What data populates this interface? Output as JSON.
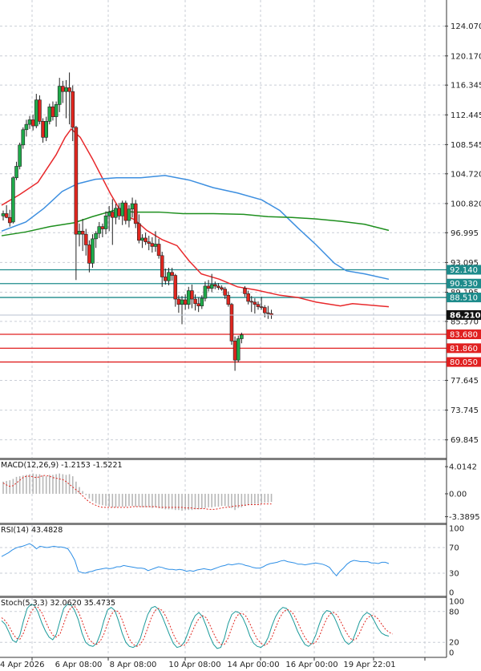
{
  "chart_data": {
    "type": "candlestick",
    "symbol_note": "",
    "price_axis": {
      "ticks": [
        "124.070",
        "120.170",
        "116.345",
        "112.445",
        "108.545",
        "104.720",
        "100.820",
        "96.995",
        "93.095",
        "89.195",
        "85.370",
        "77.645",
        "73.745",
        "69.845"
      ],
      "ylim": [
        67.5,
        127.5
      ]
    },
    "time_axis": {
      "ticks": [
        "4 Apr 2026",
        "6 Apr 08:00",
        "8 Apr 08:00",
        "10 Apr 08:00",
        "14 Apr 00:00",
        "16 Apr 00:00",
        "19 Apr 22:01"
      ]
    },
    "levels": [
      {
        "label": "92.140",
        "value": 92.14,
        "color": "#1e8b8b"
      },
      {
        "label": "90.330",
        "value": 90.33,
        "color": "#1e8b8b"
      },
      {
        "label": "88.510",
        "value": 88.51,
        "color": "#1e8b8b"
      },
      {
        "label": "83.680",
        "value": 83.68,
        "color": "#e02020"
      },
      {
        "label": "81.860",
        "value": 81.86,
        "color": "#e02020"
      },
      {
        "label": "80.050",
        "value": 80.05,
        "color": "#e02020"
      }
    ],
    "current_price": {
      "label": "86.210",
      "value": 86.21
    },
    "candles": [
      [
        99.2,
        99.9,
        98.6,
        99.5
      ],
      [
        99.5,
        100.6,
        98.9,
        99.0
      ],
      [
        99.0,
        100.0,
        97.8,
        98.3
      ],
      [
        98.4,
        104.4,
        98.2,
        104.2
      ],
      [
        104.2,
        106.3,
        103.9,
        105.7
      ],
      [
        105.7,
        108.8,
        105.3,
        108.5
      ],
      [
        108.5,
        110.8,
        108.0,
        110.5
      ],
      [
        110.5,
        111.8,
        109.6,
        111.2
      ],
      [
        111.2,
        112.3,
        110.6,
        111.8
      ],
      [
        111.8,
        112.5,
        110.4,
        111.0
      ],
      [
        111.0,
        115.2,
        110.7,
        114.4
      ],
      [
        114.4,
        115.0,
        111.2,
        111.6
      ],
      [
        111.6,
        112.0,
        108.8,
        109.5
      ],
      [
        109.5,
        112.2,
        109.0,
        111.6
      ],
      [
        111.6,
        113.9,
        111.2,
        113.5
      ],
      [
        113.5,
        114.2,
        111.7,
        112.2
      ],
      [
        112.2,
        114.2,
        110.9,
        113.8
      ],
      [
        113.8,
        117.3,
        112.8,
        116.2
      ],
      [
        116.2,
        116.9,
        114.0,
        115.5
      ],
      [
        115.5,
        117.0,
        112.0,
        116.0
      ],
      [
        116.0,
        118.0,
        111.2,
        115.5
      ],
      [
        115.5,
        116.3,
        109.0,
        110.8
      ],
      [
        110.8,
        111.0,
        90.8,
        96.8
      ],
      [
        96.8,
        98.2,
        95.2,
        97.2
      ],
      [
        97.2,
        98.8,
        94.6,
        96.8
      ],
      [
        96.8,
        97.5,
        94.0,
        95.4
      ],
      [
        95.4,
        96.0,
        91.8,
        93.0
      ],
      [
        93.0,
        96.8,
        92.4,
        96.2
      ],
      [
        96.2,
        97.2,
        95.0,
        96.9
      ],
      [
        96.9,
        98.4,
        96.3,
        97.8
      ],
      [
        97.8,
        98.2,
        96.4,
        97.5
      ],
      [
        97.5,
        99.8,
        96.8,
        99.2
      ],
      [
        99.2,
        100.5,
        97.2,
        99.7
      ],
      [
        99.7,
        101.4,
        95.4,
        99.0
      ],
      [
        99.0,
        100.8,
        98.1,
        100.2
      ],
      [
        100.2,
        100.9,
        98.7,
        99.2
      ],
      [
        99.2,
        101.2,
        98.0,
        100.9
      ],
      [
        100.9,
        101.2,
        98.1,
        98.6
      ],
      [
        98.6,
        100.6,
        97.7,
        100.1
      ],
      [
        100.1,
        101.6,
        99.0,
        100.8
      ],
      [
        100.8,
        101.3,
        97.6,
        98.2
      ],
      [
        98.2,
        99.4,
        95.6,
        96.0
      ],
      [
        96.0,
        96.8,
        95.0,
        96.3
      ],
      [
        96.3,
        97.0,
        95.4,
        95.8
      ],
      [
        95.8,
        96.6,
        94.7,
        95.6
      ],
      [
        95.6,
        96.4,
        94.4,
        95.2
      ],
      [
        95.2,
        97.2,
        94.5,
        95.5
      ],
      [
        95.5,
        96.2,
        93.6,
        94.0
      ],
      [
        94.0,
        94.5,
        89.9,
        91.2
      ],
      [
        91.2,
        92.3,
        90.2,
        90.7
      ],
      [
        90.7,
        92.4,
        90.1,
        91.8
      ],
      [
        91.8,
        92.4,
        90.7,
        91.4
      ],
      [
        91.4,
        91.6,
        87.3,
        88.3
      ],
      [
        88.3,
        88.8,
        86.5,
        87.6
      ],
      [
        87.6,
        88.7,
        85.0,
        88.2
      ],
      [
        88.2,
        88.9,
        86.9,
        87.6
      ],
      [
        87.6,
        89.9,
        87.0,
        89.4
      ],
      [
        89.4,
        90.2,
        87.1,
        88.3
      ],
      [
        88.3,
        88.9,
        86.8,
        87.7
      ],
      [
        87.7,
        88.5,
        86.6,
        87.4
      ],
      [
        87.4,
        88.8,
        87.0,
        88.4
      ],
      [
        88.4,
        90.6,
        88.0,
        90.0
      ],
      [
        90.0,
        90.8,
        89.3,
        89.7
      ],
      [
        89.7,
        91.6,
        89.2,
        90.2
      ],
      [
        90.2,
        90.6,
        89.6,
        90.0
      ],
      [
        90.0,
        90.4,
        89.5,
        89.8
      ],
      [
        89.8,
        90.1,
        89.4,
        89.6
      ],
      [
        89.6,
        89.9,
        88.3,
        88.8
      ],
      [
        88.8,
        89.3,
        87.3,
        87.6
      ],
      [
        87.6,
        87.8,
        82.3,
        82.8
      ],
      [
        82.8,
        83.4,
        78.9,
        80.3
      ],
      [
        80.3,
        83.5,
        80.0,
        83.1
      ],
      [
        83.1,
        83.9,
        82.5,
        83.6
      ],
      [
        89.7,
        90.0,
        88.6,
        89.0
      ],
      [
        89.0,
        89.4,
        87.6,
        88.0
      ],
      [
        88.0,
        88.7,
        86.6,
        87.9
      ],
      [
        87.9,
        88.4,
        86.4,
        87.6
      ],
      [
        87.6,
        88.0,
        86.9,
        87.3
      ],
      [
        87.3,
        88.6,
        86.9,
        87.2
      ],
      [
        87.2,
        87.5,
        85.9,
        86.5
      ],
      [
        86.5,
        87.4,
        85.7,
        86.4
      ],
      [
        86.4,
        86.9,
        85.7,
        86.2
      ]
    ],
    "moving_averages": [
      {
        "name": "MA fast",
        "color": "#e8282b",
        "values": [
          [
            0,
            100.6
          ],
          [
            6,
            102.0
          ],
          [
            12,
            103.6
          ],
          [
            18,
            107.2
          ],
          [
            21,
            109.5
          ],
          [
            23,
            110.6
          ],
          [
            26,
            109.5
          ],
          [
            30,
            106.7
          ],
          [
            36,
            102.1
          ],
          [
            40,
            99.4
          ],
          [
            44,
            98.7
          ],
          [
            48,
            97.3
          ],
          [
            53,
            96.1
          ],
          [
            58,
            95.3
          ],
          [
            62,
            93.3
          ],
          [
            66,
            91.6
          ],
          [
            72,
            90.9
          ],
          [
            78,
            89.9
          ],
          [
            84,
            89.5
          ],
          [
            92,
            88.8
          ],
          [
            98,
            88.5
          ],
          [
            104,
            87.9
          ],
          [
            112,
            87.4
          ],
          [
            116,
            87.7
          ],
          [
            128,
            87.3
          ]
        ]
      },
      {
        "name": "MA medium",
        "color": "#3d8fe0",
        "values": [
          [
            0,
            97.2
          ],
          [
            8,
            98.4
          ],
          [
            14,
            100.2
          ],
          [
            20,
            102.4
          ],
          [
            25,
            103.4
          ],
          [
            31,
            104.0
          ],
          [
            38,
            104.2
          ],
          [
            46,
            104.2
          ],
          [
            54,
            104.5
          ],
          [
            62,
            103.9
          ],
          [
            70,
            102.9
          ],
          [
            78,
            102.2
          ],
          [
            86,
            101.3
          ],
          [
            92,
            99.9
          ],
          [
            98,
            97.6
          ],
          [
            104,
            95.4
          ],
          [
            110,
            93.0
          ],
          [
            114,
            92.0
          ],
          [
            120,
            91.6
          ],
          [
            128,
            90.9
          ]
        ]
      },
      {
        "name": "MA slow",
        "color": "#1e8f1e",
        "values": [
          [
            0,
            96.6
          ],
          [
            8,
            97.1
          ],
          [
            16,
            97.8
          ],
          [
            24,
            98.3
          ],
          [
            30,
            99.1
          ],
          [
            37,
            99.9
          ],
          [
            44,
            99.7
          ],
          [
            52,
            99.7
          ],
          [
            60,
            99.5
          ],
          [
            70,
            99.5
          ],
          [
            80,
            99.4
          ],
          [
            88,
            99.1
          ],
          [
            96,
            99.0
          ],
          [
            104,
            98.8
          ],
          [
            112,
            98.5
          ],
          [
            120,
            98.1
          ],
          [
            128,
            97.3
          ]
        ]
      }
    ],
    "macd": {
      "label": "MACD(12,26,9) -1.2153 -1.5221",
      "ticks": [
        "4.0142",
        "0.00",
        "-3.3895"
      ],
      "ylim": [
        -3.8,
        4.5
      ],
      "histogram": [
        1.8,
        1.9,
        2.0,
        2.2,
        2.5,
        2.6,
        2.7,
        2.8,
        2.9,
        3.0,
        2.9,
        2.9,
        2.7,
        2.6,
        2.8,
        2.8,
        2.9,
        3.0,
        2.9,
        2.8,
        2.9,
        2.6,
        1.8,
        1.0,
        0.4,
        -0.2,
        -0.7,
        -1.1,
        -1.4,
        -1.6,
        -1.7,
        -1.8,
        -1.9,
        -2.0,
        -2.0,
        -1.9,
        -1.9,
        -1.9,
        -1.8,
        -1.8,
        -1.9,
        -1.9,
        -2.0,
        -2.0,
        -2.0,
        -2.1,
        -2.0,
        -2.1,
        -2.2,
        -2.3,
        -2.3,
        -2.3,
        -2.4,
        -2.4,
        -2.5,
        -2.4,
        -2.4,
        -2.4,
        -2.3,
        -2.3,
        -2.2,
        -2.1,
        -2.0,
        -2.0,
        -1.9,
        -1.9,
        -1.8,
        -1.8,
        -1.9,
        -2.1,
        -2.4,
        -2.1,
        -2.0,
        -1.8,
        -1.7,
        -1.6,
        -1.5,
        -1.5,
        -1.4,
        -1.3,
        -1.3,
        -1.2
      ],
      "signal": [
        1.6,
        1.3,
        1.1,
        1.2,
        1.6,
        2.0,
        2.4,
        2.6,
        2.6,
        2.5,
        2.4,
        2.5,
        2.7,
        2.7,
        2.6,
        2.4,
        2.3,
        2.2,
        2.1,
        1.8,
        1.4,
        1.0,
        0.6,
        0.2,
        -0.3,
        -0.8,
        -1.2,
        -1.5,
        -1.7,
        -1.9,
        -2.0,
        -2.0,
        -2.0,
        -2.0,
        -2.0,
        -2.0,
        -2.0,
        -2.0,
        -2.0,
        -1.9,
        -1.9,
        -1.9,
        -1.9,
        -1.9,
        -1.9,
        -1.9,
        -1.9,
        -2.0,
        -2.0,
        -2.0,
        -2.0,
        -2.0,
        -2.0,
        -2.0,
        -2.0,
        -2.1,
        -2.1,
        -2.1,
        -2.2,
        -2.2,
        -2.2,
        -2.2,
        -2.3,
        -2.3,
        -2.3,
        -2.2,
        -2.1,
        -2.0,
        -2.0,
        -1.9,
        -1.8,
        -1.8,
        -1.7,
        -1.7,
        -1.6,
        -1.6,
        -1.6,
        -1.6,
        -1.5,
        -1.5,
        -1.5,
        -1.5
      ]
    },
    "rsi": {
      "label": "RSI(14) 43.4828",
      "ticks": [
        "100",
        "70",
        "30",
        "0"
      ],
      "ylim": [
        0,
        100
      ],
      "values": [
        56,
        59,
        62,
        66,
        69,
        71,
        72,
        74,
        76,
        73,
        68,
        72,
        71,
        70,
        71,
        72,
        71,
        71,
        70,
        68,
        60,
        50,
        33,
        31,
        30,
        32,
        33,
        35,
        36,
        37,
        38,
        37,
        38,
        40,
        40,
        42,
        41,
        40,
        39,
        38,
        38,
        37,
        34,
        36,
        38,
        40,
        39,
        37,
        36,
        36,
        35,
        36,
        35,
        33,
        34,
        33,
        35,
        36,
        37,
        36,
        35,
        37,
        39,
        41,
        42,
        44,
        43,
        44,
        45,
        44,
        42,
        41,
        39,
        38,
        38,
        40,
        43,
        45,
        46,
        47,
        49,
        50,
        48,
        47,
        46,
        44,
        44,
        43,
        44,
        45,
        46,
        45,
        44,
        42,
        39,
        32,
        26,
        33,
        38,
        44,
        48,
        50,
        49,
        48,
        48,
        48,
        46,
        46,
        45,
        47,
        47,
        45
      ]
    },
    "stoch": {
      "label": "Stoch(5,3,3) 32.0620 35.4735",
      "ticks": [
        "100",
        "80",
        "20",
        "0"
      ],
      "ylim": [
        0,
        100
      ],
      "k": [
        62,
        55,
        40,
        24,
        20,
        34,
        62,
        86,
        94,
        92,
        78,
        58,
        42,
        30,
        25,
        36,
        62,
        86,
        94,
        93,
        82,
        64,
        38,
        20,
        14,
        12,
        18,
        36,
        62,
        83,
        88,
        82,
        62,
        38,
        20,
        12,
        10,
        14,
        28,
        52,
        74,
        87,
        90,
        84,
        70,
        52,
        34,
        18,
        10,
        12,
        20,
        38,
        58,
        72,
        78,
        70,
        52,
        32,
        16,
        8,
        10,
        28,
        56,
        74,
        80,
        78,
        68,
        52,
        32,
        18,
        12,
        10,
        16,
        30,
        52,
        70,
        82,
        88,
        86,
        76,
        60,
        42,
        28,
        16,
        12,
        18,
        34,
        56,
        74,
        82,
        80,
        70,
        54,
        36,
        22,
        16,
        22,
        40,
        60,
        72,
        78,
        74,
        62,
        48,
        38,
        34,
        32
      ],
      "d": [
        68,
        62,
        52,
        38,
        28,
        26,
        38,
        58,
        78,
        88,
        88,
        78,
        62,
        46,
        34,
        30,
        36,
        56,
        76,
        88,
        90,
        80,
        62,
        42,
        26,
        18,
        16,
        22,
        36,
        56,
        74,
        82,
        80,
        64,
        44,
        26,
        16,
        12,
        16,
        28,
        48,
        68,
        82,
        86,
        82,
        70,
        54,
        36,
        22,
        14,
        14,
        22,
        38,
        54,
        66,
        72,
        68,
        54,
        38,
        24,
        16,
        16,
        28,
        48,
        66,
        76,
        76,
        70,
        56,
        40,
        26,
        18,
        14,
        18,
        30,
        48,
        66,
        78,
        84,
        82,
        74,
        60,
        44,
        30,
        20,
        16,
        20,
        32,
        50,
        66,
        76,
        78,
        72,
        58,
        44,
        32,
        24,
        26,
        38,
        54,
        66,
        72,
        72,
        66,
        56,
        46,
        40,
        36
      ]
    }
  }
}
